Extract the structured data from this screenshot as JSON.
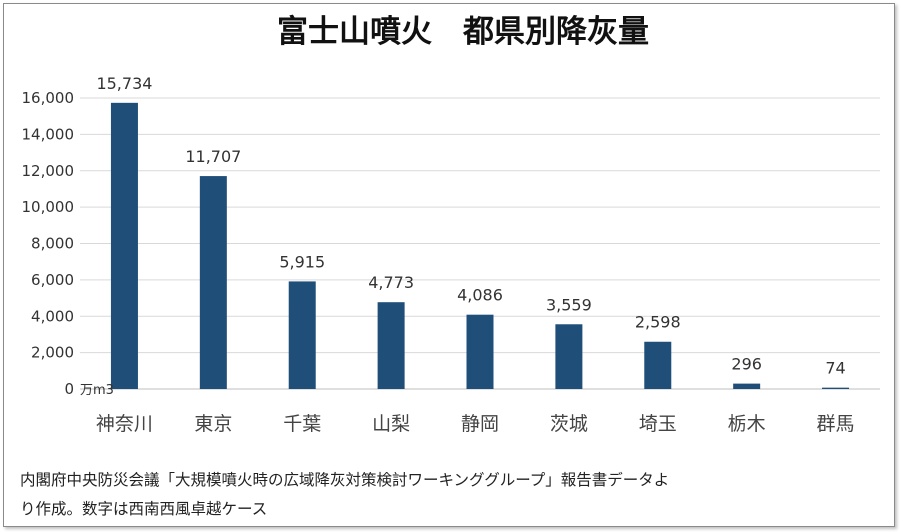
{
  "chart_data": {
    "type": "bar",
    "title": "富士山噴火　都県別降灰量",
    "xlabel": "",
    "ylabel": "",
    "unit": "万m3",
    "categories": [
      "神奈川",
      "東京",
      "千葉",
      "山梨",
      "静岡",
      "茨城",
      "埼玉",
      "栃木",
      "群馬"
    ],
    "values": [
      15734,
      11707,
      5915,
      4773,
      4086,
      3559,
      2598,
      296,
      74
    ],
    "value_labels": [
      "15,734",
      "11,707",
      "5,915",
      "4,773",
      "4,086",
      "3,559",
      "2,598",
      "296",
      "74"
    ],
    "ylim": [
      0,
      16000
    ],
    "yticks": [
      0,
      2000,
      4000,
      6000,
      8000,
      10000,
      12000,
      14000,
      16000
    ],
    "ytick_labels": [
      "0",
      "2,000",
      "4,000",
      "6,000",
      "8,000",
      "10,000",
      "12,000",
      "14,000",
      "16,000"
    ],
    "grid": true,
    "legend": false,
    "bar_color": "#1f4e79"
  },
  "note": {
    "line1": "内閣府中央防災会議「大規模噴火時の広域降灰対策検討ワーキンググループ」報告書データよ",
    "line2": "り作成。数字は西南西風卓越ケース"
  }
}
